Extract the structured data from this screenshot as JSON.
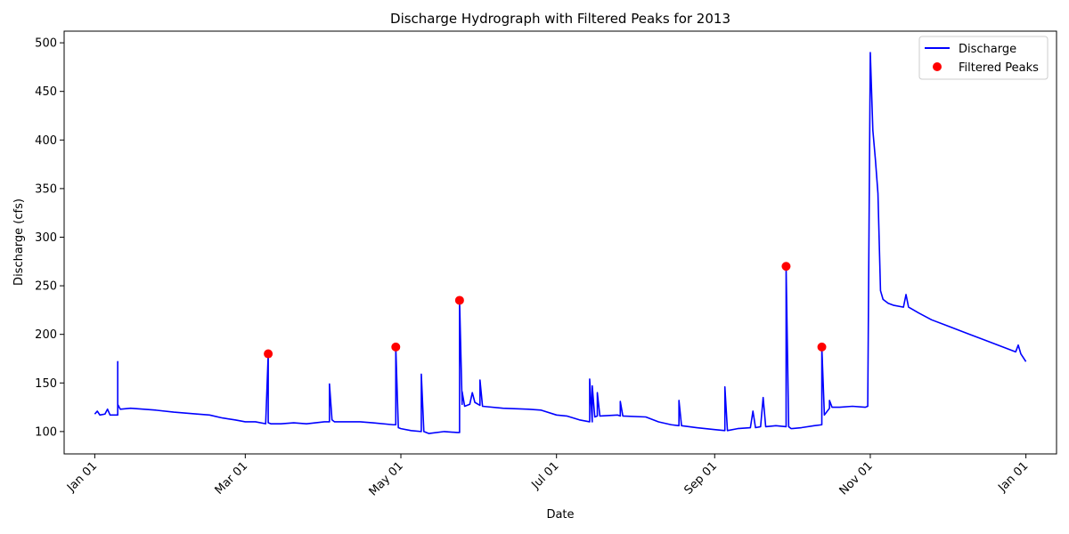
{
  "chart_data": {
    "type": "line",
    "title": "Discharge Hydrograph with Filtered Peaks for 2013",
    "xlabel": "Date",
    "ylabel": "Discharge (cfs)",
    "xlim": [
      "2012-12-20",
      "2014-01-13"
    ],
    "ylim": [
      77,
      512
    ],
    "x_ticks": [
      {
        "date": "2013-01-01",
        "label": "Jan 01"
      },
      {
        "date": "2013-03-01",
        "label": "Mar 01"
      },
      {
        "date": "2013-05-01",
        "label": "May 01"
      },
      {
        "date": "2013-07-01",
        "label": "Jul 01"
      },
      {
        "date": "2013-09-01",
        "label": "Sep 01"
      },
      {
        "date": "2013-11-01",
        "label": "Nov 01"
      },
      {
        "date": "2014-01-01",
        "label": "Jan 01"
      }
    ],
    "y_ticks": [
      100,
      150,
      200,
      250,
      300,
      350,
      400,
      450,
      500
    ],
    "grid": false,
    "legend_position": "top-right",
    "colors": {
      "discharge": "#0000ff",
      "peaks": "#ff0000"
    },
    "series": [
      {
        "name": "Discharge",
        "style": "line",
        "points": [
          [
            "2013-01-01",
            118
          ],
          [
            "2013-01-02",
            121
          ],
          [
            "2013-01-03",
            117
          ],
          [
            "2013-01-05",
            118
          ],
          [
            "2013-01-06",
            123
          ],
          [
            "2013-01-07",
            117
          ],
          [
            "2013-01-09",
            117
          ],
          [
            "2013-01-10",
            117
          ],
          [
            "2013-01-10",
            172
          ],
          [
            "2013-01-10",
            128
          ],
          [
            "2013-01-11",
            123
          ],
          [
            "2013-01-15",
            124
          ],
          [
            "2013-01-25",
            122
          ],
          [
            "2013-02-01",
            120
          ],
          [
            "2013-02-10",
            118
          ],
          [
            "2013-02-15",
            117
          ],
          [
            "2013-02-20",
            114
          ],
          [
            "2013-02-25",
            112
          ],
          [
            "2013-03-01",
            110
          ],
          [
            "2013-03-05",
            110
          ],
          [
            "2013-03-09",
            108
          ],
          [
            "2013-03-10",
            180
          ],
          [
            "2013-03-10",
            109
          ],
          [
            "2013-03-11",
            108
          ],
          [
            "2013-03-15",
            108
          ],
          [
            "2013-03-20",
            109
          ],
          [
            "2013-03-25",
            108
          ],
          [
            "2013-04-01",
            110
          ],
          [
            "2013-04-03",
            110
          ],
          [
            "2013-04-03",
            149
          ],
          [
            "2013-04-04",
            112
          ],
          [
            "2013-04-05",
            110
          ],
          [
            "2013-04-10",
            110
          ],
          [
            "2013-04-15",
            110
          ],
          [
            "2013-04-20",
            109
          ],
          [
            "2013-04-28",
            107
          ],
          [
            "2013-04-29",
            107
          ],
          [
            "2013-04-29",
            187
          ],
          [
            "2013-04-30",
            104
          ],
          [
            "2013-05-01",
            103
          ],
          [
            "2013-05-05",
            101
          ],
          [
            "2013-05-09",
            100
          ],
          [
            "2013-05-09",
            159
          ],
          [
            "2013-05-10",
            100
          ],
          [
            "2013-05-12",
            98
          ],
          [
            "2013-05-18",
            100
          ],
          [
            "2013-05-23",
            99
          ],
          [
            "2013-05-24",
            99
          ],
          [
            "2013-05-24",
            235
          ],
          [
            "2013-05-25",
            128
          ],
          [
            "2013-05-25",
            141
          ],
          [
            "2013-05-26",
            126
          ],
          [
            "2013-05-28",
            128
          ],
          [
            "2013-05-29",
            140
          ],
          [
            "2013-05-30",
            130
          ],
          [
            "2013-06-01",
            127
          ],
          [
            "2013-06-01",
            153
          ],
          [
            "2013-06-02",
            126
          ],
          [
            "2013-06-10",
            124
          ],
          [
            "2013-06-20",
            123
          ],
          [
            "2013-06-25",
            122
          ],
          [
            "2013-07-01",
            117
          ],
          [
            "2013-07-05",
            116
          ],
          [
            "2013-07-10",
            112
          ],
          [
            "2013-07-14",
            110
          ],
          [
            "2013-07-14",
            154
          ],
          [
            "2013-07-15",
            110
          ],
          [
            "2013-07-15",
            147
          ],
          [
            "2013-07-16",
            115
          ],
          [
            "2013-07-17",
            116
          ],
          [
            "2013-07-17",
            140
          ],
          [
            "2013-07-18",
            116
          ],
          [
            "2013-07-25",
            117
          ],
          [
            "2013-07-26",
            116
          ],
          [
            "2013-07-26",
            131
          ],
          [
            "2013-07-27",
            116
          ],
          [
            "2013-08-05",
            115
          ],
          [
            "2013-08-10",
            110
          ],
          [
            "2013-08-15",
            107
          ],
          [
            "2013-08-18",
            106
          ],
          [
            "2013-08-18",
            132
          ],
          [
            "2013-08-19",
            106
          ],
          [
            "2013-08-25",
            104
          ],
          [
            "2013-09-01",
            102
          ],
          [
            "2013-09-05",
            101
          ],
          [
            "2013-09-05",
            146
          ],
          [
            "2013-09-06",
            101
          ],
          [
            "2013-09-10",
            103
          ],
          [
            "2013-09-15",
            104
          ],
          [
            "2013-09-16",
            121
          ],
          [
            "2013-09-17",
            104
          ],
          [
            "2013-09-19",
            105
          ],
          [
            "2013-09-20",
            135
          ],
          [
            "2013-09-21",
            105
          ],
          [
            "2013-09-25",
            106
          ],
          [
            "2013-09-29",
            105
          ],
          [
            "2013-09-29",
            270
          ],
          [
            "2013-09-30",
            105
          ],
          [
            "2013-10-01",
            103
          ],
          [
            "2013-10-05",
            104
          ],
          [
            "2013-10-10",
            106
          ],
          [
            "2013-10-13",
            107
          ],
          [
            "2013-10-13",
            187
          ],
          [
            "2013-10-14",
            117
          ],
          [
            "2013-10-16",
            124
          ],
          [
            "2013-10-16",
            132
          ],
          [
            "2013-10-17",
            125
          ],
          [
            "2013-10-20",
            125
          ],
          [
            "2013-10-25",
            126
          ],
          [
            "2013-10-30",
            125
          ],
          [
            "2013-10-31",
            126
          ],
          [
            "2013-11-01",
            490
          ],
          [
            "2013-11-02",
            410
          ],
          [
            "2013-11-03",
            380
          ],
          [
            "2013-11-04",
            345
          ],
          [
            "2013-11-05",
            245
          ],
          [
            "2013-11-06",
            236
          ],
          [
            "2013-11-08",
            232
          ],
          [
            "2013-11-10",
            230
          ],
          [
            "2013-11-14",
            228
          ],
          [
            "2013-11-15",
            241
          ],
          [
            "2013-11-16",
            228
          ],
          [
            "2013-11-20",
            222
          ],
          [
            "2013-11-25",
            215
          ],
          [
            "2013-11-30",
            210
          ],
          [
            "2013-12-10",
            200
          ],
          [
            "2013-12-20",
            190
          ],
          [
            "2013-12-28",
            182
          ],
          [
            "2013-12-29",
            189
          ],
          [
            "2013-12-30",
            180
          ],
          [
            "2014-01-01",
            172
          ]
        ]
      },
      {
        "name": "Filtered Peaks",
        "style": "markers",
        "points": [
          [
            "2013-03-10",
            180
          ],
          [
            "2013-04-29",
            187
          ],
          [
            "2013-05-24",
            235
          ],
          [
            "2013-09-29",
            270
          ],
          [
            "2013-10-13",
            187
          ]
        ]
      }
    ]
  }
}
